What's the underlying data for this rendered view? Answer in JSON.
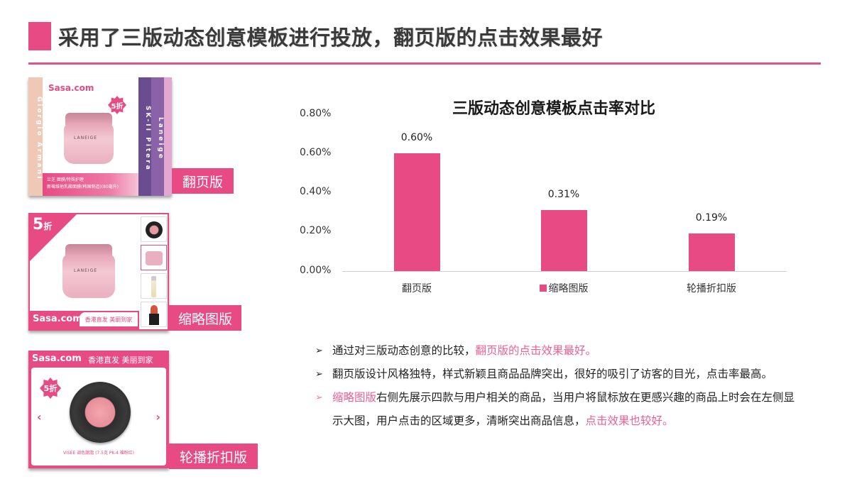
{
  "header": {
    "title": "采用了三版动态创意模板进行投放，翻页版的点击效果最好",
    "accent_color": "#e84a83"
  },
  "cards": [
    {
      "id": "flip",
      "label": "翻页版",
      "logo": "Sasa.com",
      "badge": "5折",
      "jar_brand": "LANEIGE",
      "left_strip_brand": "Giorgio Armani",
      "strip_brands": [
        "SK-II Pitera",
        "Laneige",
        "Bobbi Brown"
      ],
      "footer_line1": "兰芝 面膜/特殊护理",
      "footer_line2": "新莓维他乳酸面膜(韩国制造)(80毫升)"
    },
    {
      "id": "thumbnail",
      "label": "缩略图版",
      "badge_number": "5",
      "badge_unit": "折",
      "jar_brand": "LANEIGE",
      "footer_logo": "Sasa.com",
      "footer_tag": "香港直发 美丽到家"
    },
    {
      "id": "carousel",
      "label": "轮播折扣版",
      "header_logo": "Sasa.com",
      "header_tag": "香港直发 美丽到家",
      "badge": "5折",
      "prev_arrow": "‹",
      "next_arrow": "›",
      "caption": "VISEE 调色腮脂 (7.5克 PK-4 裸粉红)"
    }
  ],
  "chart_data": {
    "type": "bar",
    "title": "三版动态创意模板点击率对比",
    "categories": [
      "翻页版",
      "缩略图版",
      "轮播折扣版"
    ],
    "values": [
      0.6,
      0.31,
      0.19
    ],
    "value_labels": [
      "0.60%",
      "0.31%",
      "0.19%"
    ],
    "unit": "%",
    "y_ticks": [
      "0.80%",
      "0.60%",
      "0.40%",
      "0.20%",
      "0.00%"
    ],
    "ylim": [
      0,
      0.8
    ],
    "xlabel": "",
    "ylabel": "",
    "grid": false,
    "legend": {
      "position": "bottom-overlapping",
      "entries": [
        "缩略图版"
      ]
    },
    "bar_color": "#e84a83"
  },
  "bullets": [
    {
      "marker": "➢",
      "highlight_marker": false,
      "parts": [
        {
          "text": "通过对三版动态创意的比较，",
          "highlight": false
        },
        {
          "text": "翻页版的点击效果最好。",
          "highlight": true
        }
      ]
    },
    {
      "marker": "➢",
      "highlight_marker": false,
      "parts": [
        {
          "text": "翻页版设计风格独特，样式新颖且商品品牌突出，很好的吸引了访客的目光，点击率最高。",
          "highlight": false
        }
      ]
    },
    {
      "marker": "➢",
      "highlight_marker": true,
      "parts": [
        {
          "text": "缩略图版",
          "highlight": true
        },
        {
          "text": "右侧先展示四款与用户相关的商品，当用户将鼠标放在更感兴趣的商品上时会在左侧显示大图，用户点击的区域更多，清晰突出商品信息，",
          "highlight": false
        },
        {
          "text": "点击效果也较好。",
          "highlight": true
        }
      ]
    }
  ]
}
